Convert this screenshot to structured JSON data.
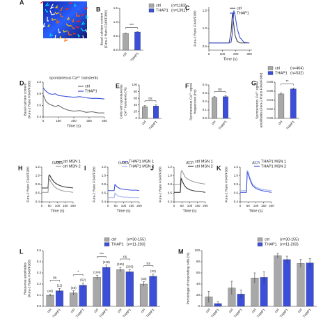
{
  "chart_data": [
    {
      "type": "image",
      "panel": "A"
    },
    {
      "type": "bar",
      "panel": "B",
      "ylabel": [
        "Basal calcium content",
        "(Fura-2 Ratio F340/F380)"
      ],
      "ylim": [
        0,
        1.5
      ],
      "yticks": [
        {
          "value": 0,
          "label": "0.0"
        },
        0.5,
        {
          "value": 1,
          "label": "1.0"
        },
        1.5
      ],
      "series": [
        {
          "name": "ctrl",
          "note": "(n=1183)",
          "color": "#a8a8a8",
          "values": [
            0.6,
            null
          ],
          "errors": [
            0.01,
            null
          ]
        },
        {
          "name": "THAP1",
          "note": "(n=1391)",
          "color": "#3b4fd8",
          "values": [
            null,
            0.65
          ],
          "errors": [
            null,
            0.01
          ]
        }
      ],
      "significance": [
        "***"
      ]
    },
    {
      "type": "line",
      "panel": "C",
      "ylabel": [
        "Fura-2 Ratio F340/F380"
      ],
      "xlabel": "Time (s)",
      "xlim": [
        0,
        320
      ],
      "xticks": [
        0,
        100,
        200,
        300
      ],
      "ylim": [
        0.4,
        1.6
      ],
      "yticks": [
        0.5,
        {
          "value": 1,
          "label": "1.0"
        },
        1.5
      ],
      "x": [
        0,
        50,
        100,
        150,
        165,
        175,
        185,
        195,
        210,
        230,
        260,
        300
      ],
      "series": [
        {
          "name": "ctrl",
          "color": "#444444",
          "values": [
            0.6,
            0.6,
            0.6,
            0.6,
            0.9,
            1.45,
            1.1,
            0.8,
            0.65,
            0.6,
            0.6,
            0.6
          ]
        },
        {
          "name": "THAP1",
          "color": "#3b4fd8",
          "values": [
            0.6,
            0.6,
            0.6,
            0.6,
            0.62,
            0.9,
            1.5,
            1.35,
            1.0,
            0.75,
            0.62,
            0.6
          ]
        }
      ]
    },
    {
      "type": "line",
      "panel": "D",
      "title": "spontaneous Ca²⁺ transients",
      "ylabel": [
        "Basal calcium content",
        "(Fura-2 Ratio F340/F380)"
      ],
      "xlabel": "Time (s)",
      "xlim": [
        0,
        400
      ],
      "xticks": [
        0,
        100,
        200,
        300,
        400
      ],
      "ylim": [
        0.4,
        1.0
      ],
      "yticks": [
        0.4,
        0.6,
        0.8,
        {
          "value": 1,
          "label": "1.0"
        }
      ],
      "x": [
        0,
        20,
        40,
        60,
        80,
        100,
        130,
        160,
        200,
        240,
        280,
        320,
        360,
        400
      ],
      "series": [
        {
          "name": "ctrl",
          "color": "#6a6a6a",
          "values": [
            0.78,
            0.66,
            0.62,
            0.6,
            0.58,
            0.6,
            0.55,
            0.52,
            0.5,
            0.51,
            0.48,
            0.49,
            0.47,
            0.47
          ]
        },
        {
          "name": "THAP1",
          "color": "#3b4fd8",
          "values": [
            0.9,
            0.84,
            0.8,
            0.79,
            0.8,
            0.77,
            0.76,
            0.75,
            0.74,
            0.75,
            0.73,
            0.72,
            0.72,
            0.71
          ]
        }
      ]
    },
    {
      "type": "bar",
      "panel": "E",
      "ylabel": [
        "Cells with spontaneous",
        "Ca²⁺ transients (%)"
      ],
      "ylim": [
        0,
        100
      ],
      "yticks": [
        0,
        20,
        40,
        60,
        80,
        100
      ],
      "series": [
        {
          "name": "ctrl",
          "color": "#a8a8a8",
          "values": [
            35,
            null
          ],
          "errors": [
            3,
            null
          ]
        },
        {
          "name": "THAP1",
          "color": "#3b4fd8",
          "values": [
            null,
            37
          ],
          "errors": [
            null,
            3
          ]
        }
      ],
      "significance": [
        "ns"
      ]
    },
    {
      "type": "bar",
      "panel": "F",
      "ylabel": [
        "Spontaneous Ca²⁺ signal",
        "frequencies (Hz)"
      ],
      "ylim": [
        0,
        0.4
      ],
      "yticks": [
        {
          "value": 0,
          "label": "0.0"
        },
        0.1,
        0.2,
        0.3,
        0.4
      ],
      "series": [
        {
          "name": "ctrl",
          "color": "#a8a8a8",
          "values": [
            0.25,
            null
          ],
          "errors": [
            0.01,
            null
          ]
        },
        {
          "name": "THAP1",
          "color": "#3b4fd8",
          "values": [
            null,
            0.26
          ],
          "errors": [
            null,
            0.01
          ]
        }
      ],
      "significance": [
        "ns"
      ]
    },
    {
      "type": "bar",
      "panel": "G",
      "ylabel": [
        "Spontaneous Ca²⁺ signal",
        "amplitudes (Fura-2 Ratio F340/F380)"
      ],
      "ylim": [
        0,
        0.08
      ],
      "yticks": [
        {
          "value": 0,
          "label": "0.00"
        },
        0.02,
        0.04,
        0.06,
        0.08
      ],
      "series": [
        {
          "name": "ctrl",
          "note": "(n=464)",
          "color": "#a8a8a8",
          "values": [
            0.054,
            null
          ],
          "errors": [
            0.002,
            null
          ]
        },
        {
          "name": "THAP1",
          "note": "(n=532)",
          "color": "#3b4fd8",
          "values": [
            null,
            0.065
          ],
          "errors": [
            null,
            0.002
          ]
        }
      ],
      "significance": [
        "**"
      ]
    },
    {
      "type": "line",
      "panel": "H",
      "title": "GABA",
      "ylabel": [
        "Fura-2 Ratio F340/F380"
      ],
      "xlabel": "Time (s)",
      "xlim": [
        0,
        200
      ],
      "xticks": [
        0,
        50,
        100,
        150,
        200
      ],
      "ylim": [
        0.4,
        1.2
      ],
      "yticks": [
        0.4,
        0.6,
        0.8,
        {
          "value": 1,
          "label": "1.0"
        },
        1.2
      ],
      "x": [
        0,
        20,
        40,
        45,
        50,
        60,
        70,
        80,
        100,
        120,
        150,
        180,
        200
      ],
      "series": [
        {
          "name": "ctrl MSN 1",
          "color": "#333333",
          "values": [
            0.72,
            0.72,
            0.72,
            1.0,
            1.02,
            0.95,
            0.9,
            0.85,
            0.8,
            0.77,
            0.74,
            0.73,
            0.72
          ]
        },
        {
          "name": "ctrl MSN 2",
          "color": "#9a9a9a",
          "values": [
            0.62,
            0.62,
            0.62,
            0.9,
            0.92,
            0.85,
            0.8,
            0.75,
            0.7,
            0.67,
            0.64,
            0.63,
            0.62
          ]
        }
      ]
    },
    {
      "type": "line",
      "panel": "I",
      "title": "GABA",
      "ylabel": [
        "Fura-2 Ratio F340/F380"
      ],
      "xlabel": "Time (s)",
      "xlim": [
        0,
        200
      ],
      "xticks": [
        0,
        50,
        100,
        150,
        200
      ],
      "ylim": [
        0.4,
        1.2
      ],
      "yticks": [
        0.4,
        0.6,
        0.8,
        {
          "value": 1,
          "label": "1.0"
        },
        1.2
      ],
      "x": [
        0,
        20,
        40,
        45,
        50,
        60,
        70,
        80,
        100,
        120,
        150,
        180,
        200
      ],
      "series": [
        {
          "name": "THAP1 MSN 1",
          "color": "#3b4fd8",
          "values": [
            0.66,
            0.66,
            0.66,
            0.8,
            0.78,
            0.74,
            0.72,
            0.7,
            0.69,
            0.68,
            0.67,
            0.67,
            0.66
          ]
        },
        {
          "name": "THAP1 MSN 2",
          "color": "#9fb2f0",
          "values": [
            0.5,
            0.5,
            0.5,
            0.6,
            0.58,
            0.55,
            0.53,
            0.52,
            0.51,
            0.51,
            0.5,
            0.5,
            0.5
          ]
        }
      ]
    },
    {
      "type": "line",
      "panel": "J",
      "title": "ACh",
      "ylabel": [
        "Fura-2 Ratio F340/F380"
      ],
      "xlabel": "Time (s)",
      "xlim": [
        0,
        200
      ],
      "xticks": [
        0,
        50,
        100,
        150,
        200
      ],
      "ylim": [
        0.4,
        1.2
      ],
      "yticks": [
        0.4,
        0.6,
        0.8,
        {
          "value": 1,
          "label": "1.0"
        },
        1.2
      ],
      "x": [
        0,
        20,
        40,
        45,
        50,
        60,
        70,
        80,
        100,
        120,
        150,
        180,
        200
      ],
      "series": [
        {
          "name": "ctrl MSN 1",
          "color": "#9a9a9a",
          "values": [
            0.8,
            0.8,
            0.8,
            1.1,
            1.12,
            1.05,
            0.98,
            0.94,
            0.9,
            0.87,
            0.84,
            0.82,
            0.81
          ]
        },
        {
          "name": "ctrl MSN 2",
          "color": "#333333",
          "values": [
            0.62,
            0.62,
            0.62,
            0.95,
            0.9,
            0.82,
            0.76,
            0.72,
            0.68,
            0.66,
            0.64,
            0.63,
            0.62
          ]
        }
      ]
    },
    {
      "type": "line",
      "panel": "K",
      "title": "ACh",
      "ylabel": [
        "Fura-2 Ratio F340/F380"
      ],
      "xlabel": "Time (s)",
      "xlim": [
        0,
        200
      ],
      "xticks": [
        0,
        50,
        100,
        150,
        200
      ],
      "ylim": [
        0.4,
        1.2
      ],
      "yticks": [
        0.4,
        0.6,
        0.8,
        {
          "value": 1,
          "label": "1.0"
        },
        1.2
      ],
      "x": [
        0,
        20,
        40,
        45,
        50,
        60,
        70,
        80,
        100,
        120,
        150,
        180,
        200
      ],
      "series": [
        {
          "name": "THAP1 MSN 1",
          "color": "#9fb2f0",
          "values": [
            0.66,
            0.66,
            0.66,
            1.12,
            1.1,
            0.98,
            0.88,
            0.8,
            0.74,
            0.71,
            0.68,
            0.67,
            0.66
          ]
        },
        {
          "name": "THAP1 MSN 2",
          "color": "#3b4fd8",
          "values": [
            0.62,
            0.62,
            0.62,
            1.08,
            1.05,
            0.94,
            0.84,
            0.77,
            0.71,
            0.68,
            0.65,
            0.63,
            0.62
          ]
        }
      ]
    },
    {
      "type": "bar",
      "panel": "L",
      "ylabel": [
        "Response amplitudes",
        "(Fura-2 Ratio F340/F380)"
      ],
      "ylim": [
        0,
        0.5
      ],
      "yticks": [
        {
          "value": 0,
          "label": "0.0"
        },
        0.1,
        0.2,
        0.3,
        0.4,
        0.5
      ],
      "series": [
        {
          "name": "ctrl",
          "note": "(n=30-155)",
          "color": "#a8a8a8",
          "values": [
            0.1,
            0.12,
            0.26,
            0.33,
            0.2
          ],
          "errors": [
            0.01,
            0.02,
            0.02,
            0.02,
            0.02
          ],
          "n_labels": [
            "(48)",
            "(49)",
            "(104)",
            "(155)",
            "(30)"
          ]
        },
        {
          "name": "THAP1",
          "note": "(n=11-203)",
          "color": "#3b4fd8",
          "values": [
            0.14,
            0.19,
            0.35,
            0.31,
            0.27
          ],
          "errors": [
            0.02,
            0.02,
            0.02,
            0.02,
            0.02
          ],
          "n_labels": [
            "(11)",
            "(62)",
            "(118)",
            "(203)",
            "(32)"
          ]
        }
      ],
      "significance": [
        "ns",
        "*",
        "***",
        "ns",
        "ns"
      ]
    },
    {
      "type": "bar",
      "panel": "M",
      "ylabel": [
        "Percentage of responding cells (%)"
      ],
      "ylim": [
        0,
        100
      ],
      "yticks": [
        0,
        20,
        40,
        60,
        80,
        100
      ],
      "series": [
        {
          "name": "ctrl",
          "note": "(n=30-155)",
          "color": "#a8a8a8",
          "values": [
            17,
            33,
            51,
            91,
            77
          ],
          "errors": [
            10,
            12,
            9,
            4,
            7
          ]
        },
        {
          "name": "THAP1",
          "note": "(n=11-203)",
          "color": "#3b4fd8",
          "values": [
            5,
            22,
            52,
            84,
            78
          ],
          "errors": [
            3,
            7,
            10,
            6,
            8
          ]
        }
      ]
    }
  ]
}
